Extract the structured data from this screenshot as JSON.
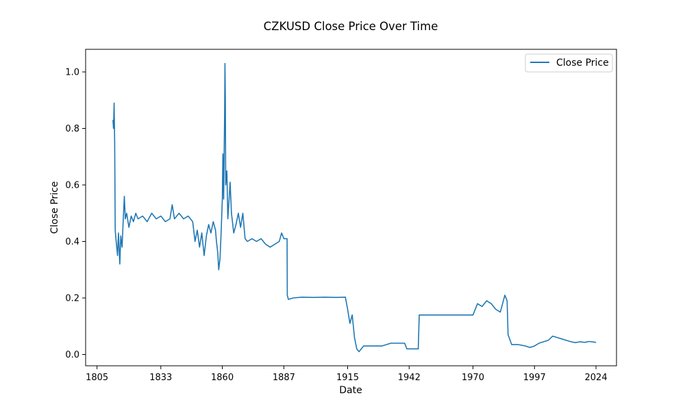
{
  "chart_data": {
    "type": "line",
    "title": "CZKUSD Close Price Over Time",
    "xlabel": "Date",
    "ylabel": "Close Price",
    "xlim": [
      "1800-01-01",
      "2033-01-01"
    ],
    "ylim": [
      -0.04,
      1.08
    ],
    "x_ticks": [
      "1805",
      "1833",
      "1860",
      "1887",
      "1915",
      "1942",
      "1970",
      "1997",
      "2024"
    ],
    "y_ticks": [
      "0.0",
      "0.2",
      "0.4",
      "0.6",
      "0.8",
      "1.0"
    ],
    "grid": false,
    "legend_position": "upper right",
    "series": [
      {
        "name": "Close Price",
        "color": "#1f77b4",
        "points": [
          [
            "1812-01-01",
            0.83
          ],
          [
            "1812-04-01",
            0.8
          ],
          [
            "1812-07-01",
            0.89
          ],
          [
            "1812-10-01",
            0.75
          ],
          [
            "1813-01-01",
            0.44
          ],
          [
            "1813-06-01",
            0.4
          ],
          [
            "1814-01-01",
            0.35
          ],
          [
            "1814-06-01",
            0.43
          ],
          [
            "1815-01-01",
            0.32
          ],
          [
            "1815-06-01",
            0.42
          ],
          [
            "1816-01-01",
            0.38
          ],
          [
            "1816-06-01",
            0.46
          ],
          [
            "1817-01-01",
            0.56
          ],
          [
            "1817-06-01",
            0.48
          ],
          [
            "1818-01-01",
            0.5
          ],
          [
            "1819-01-01",
            0.45
          ],
          [
            "1820-01-01",
            0.49
          ],
          [
            "1821-01-01",
            0.47
          ],
          [
            "1822-01-01",
            0.5
          ],
          [
            "1823-01-01",
            0.48
          ],
          [
            "1825-01-01",
            0.49
          ],
          [
            "1827-01-01",
            0.47
          ],
          [
            "1829-01-01",
            0.5
          ],
          [
            "1831-01-01",
            0.48
          ],
          [
            "1833-01-01",
            0.49
          ],
          [
            "1835-01-01",
            0.47
          ],
          [
            "1837-01-01",
            0.48
          ],
          [
            "1838-01-01",
            0.53
          ],
          [
            "1839-01-01",
            0.48
          ],
          [
            "1841-01-01",
            0.5
          ],
          [
            "1843-01-01",
            0.48
          ],
          [
            "1845-01-01",
            0.49
          ],
          [
            "1847-01-01",
            0.47
          ],
          [
            "1848-01-01",
            0.4
          ],
          [
            "1849-01-01",
            0.44
          ],
          [
            "1850-01-01",
            0.38
          ],
          [
            "1851-01-01",
            0.43
          ],
          [
            "1852-01-01",
            0.35
          ],
          [
            "1853-01-01",
            0.42
          ],
          [
            "1854-01-01",
            0.46
          ],
          [
            "1855-01-01",
            0.43
          ],
          [
            "1856-01-01",
            0.47
          ],
          [
            "1857-01-01",
            0.44
          ],
          [
            "1857-06-01",
            0.4
          ],
          [
            "1858-01-01",
            0.36
          ],
          [
            "1858-06-01",
            0.3
          ],
          [
            "1859-01-01",
            0.34
          ],
          [
            "1859-06-01",
            0.42
          ],
          [
            "1860-01-01",
            0.55
          ],
          [
            "1860-04-01",
            0.71
          ],
          [
            "1860-08-01",
            0.55
          ],
          [
            "1861-01-01",
            0.85
          ],
          [
            "1861-03-01",
            1.03
          ],
          [
            "1861-05-01",
            0.9
          ],
          [
            "1861-07-01",
            0.6
          ],
          [
            "1862-01-01",
            0.65
          ],
          [
            "1862-06-01",
            0.48
          ],
          [
            "1863-01-01",
            0.55
          ],
          [
            "1863-06-01",
            0.61
          ],
          [
            "1864-01-01",
            0.5
          ],
          [
            "1865-01-01",
            0.43
          ],
          [
            "1866-01-01",
            0.46
          ],
          [
            "1867-01-01",
            0.5
          ],
          [
            "1868-01-01",
            0.45
          ],
          [
            "1869-01-01",
            0.5
          ],
          [
            "1870-01-01",
            0.41
          ],
          [
            "1871-01-01",
            0.4
          ],
          [
            "1873-01-01",
            0.41
          ],
          [
            "1875-01-01",
            0.4
          ],
          [
            "1877-01-01",
            0.41
          ],
          [
            "1879-01-01",
            0.39
          ],
          [
            "1881-01-01",
            0.38
          ],
          [
            "1883-01-01",
            0.39
          ],
          [
            "1885-01-01",
            0.4
          ],
          [
            "1886-01-01",
            0.43
          ],
          [
            "1887-01-01",
            0.41
          ],
          [
            "1888-06-01",
            0.41
          ],
          [
            "1888-07-01",
            0.21
          ],
          [
            "1889-01-01",
            0.195
          ],
          [
            "1891-01-01",
            0.2
          ],
          [
            "1895-01-01",
            0.203
          ],
          [
            "1900-01-01",
            0.202
          ],
          [
            "1905-01-01",
            0.203
          ],
          [
            "1910-01-01",
            0.202
          ],
          [
            "1914-01-01",
            0.203
          ],
          [
            "1915-01-01",
            0.16
          ],
          [
            "1916-01-01",
            0.11
          ],
          [
            "1917-01-01",
            0.14
          ],
          [
            "1918-01-01",
            0.06
          ],
          [
            "1919-01-01",
            0.02
          ],
          [
            "1920-01-01",
            0.01
          ],
          [
            "1921-01-01",
            0.02
          ],
          [
            "1922-01-01",
            0.03
          ],
          [
            "1926-01-01",
            0.03
          ],
          [
            "1930-01-01",
            0.03
          ],
          [
            "1934-01-01",
            0.04
          ],
          [
            "1937-01-01",
            0.04
          ],
          [
            "1940-01-01",
            0.04
          ],
          [
            "1941-01-01",
            0.02
          ],
          [
            "1946-01-01",
            0.02
          ],
          [
            "1946-06-01",
            0.14
          ],
          [
            "1960-01-01",
            0.14
          ],
          [
            "1970-01-01",
            0.14
          ],
          [
            "1972-01-01",
            0.18
          ],
          [
            "1974-01-01",
            0.17
          ],
          [
            "1976-01-01",
            0.19
          ],
          [
            "1978-01-01",
            0.18
          ],
          [
            "1980-01-01",
            0.16
          ],
          [
            "1982-01-01",
            0.15
          ],
          [
            "1984-01-01",
            0.21
          ],
          [
            "1985-01-01",
            0.19
          ],
          [
            "1985-06-01",
            0.07
          ],
          [
            "1987-01-01",
            0.035
          ],
          [
            "1990-01-01",
            0.035
          ],
          [
            "1993-01-01",
            0.03
          ],
          [
            "1995-01-01",
            0.025
          ],
          [
            "1997-01-01",
            0.03
          ],
          [
            "1999-01-01",
            0.04
          ],
          [
            "2001-01-01",
            0.045
          ],
          [
            "2003-01-01",
            0.05
          ],
          [
            "2005-01-01",
            0.065
          ],
          [
            "2007-01-01",
            0.06
          ],
          [
            "2009-01-01",
            0.055
          ],
          [
            "2011-01-01",
            0.05
          ],
          [
            "2013-01-01",
            0.045
          ],
          [
            "2015-01-01",
            0.042
          ],
          [
            "2017-01-01",
            0.045
          ],
          [
            "2019-01-01",
            0.043
          ],
          [
            "2021-01-01",
            0.046
          ],
          [
            "2024-01-01",
            0.043
          ]
        ]
      }
    ]
  }
}
